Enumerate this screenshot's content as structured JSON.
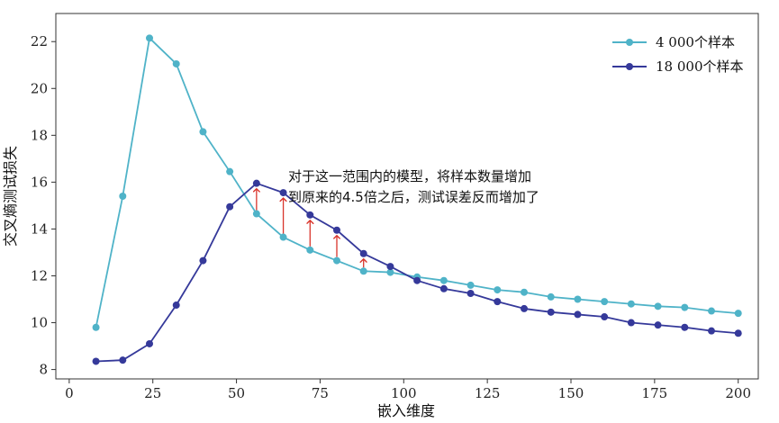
{
  "chart_data": {
    "type": "line",
    "xlabel": "嵌入维度",
    "ylabel": "交叉熵测试损失",
    "xlim": [
      -4,
      206
    ],
    "ylim": [
      7.6,
      23.2
    ],
    "xticks": [
      0,
      25,
      50,
      75,
      100,
      125,
      150,
      175,
      200
    ],
    "yticks": [
      8,
      10,
      12,
      14,
      16,
      18,
      20,
      22
    ],
    "x": [
      8,
      16,
      24,
      32,
      40,
      48,
      56,
      64,
      72,
      80,
      88,
      96,
      104,
      112,
      120,
      128,
      136,
      144,
      152,
      160,
      168,
      176,
      184,
      192,
      200
    ],
    "series": [
      {
        "name": "4 000个样本",
        "color": "#4fb3c8",
        "values": [
          9.8,
          15.4,
          22.15,
          21.05,
          18.15,
          16.45,
          14.65,
          13.65,
          13.1,
          12.65,
          12.2,
          12.15,
          11.95,
          11.8,
          11.6,
          11.4,
          11.3,
          11.1,
          11.0,
          10.9,
          10.8,
          10.7,
          10.65,
          10.5,
          10.4
        ]
      },
      {
        "name": "18 000个样本",
        "color": "#35399a",
        "values": [
          8.35,
          8.4,
          9.1,
          10.75,
          12.65,
          14.95,
          15.95,
          15.55,
          14.6,
          13.95,
          12.95,
          12.4,
          11.8,
          11.45,
          11.25,
          10.9,
          10.6,
          10.45,
          10.35,
          10.25,
          10.0,
          9.9,
          9.8,
          9.65,
          9.55
        ]
      }
    ],
    "arrows": {
      "color": "#d9342b",
      "x": [
        56,
        64,
        72,
        80,
        88
      ]
    },
    "annotation": [
      "对于这一范围内的模型，将样本数量增加",
      "到原来的4.5倍之后，测试误差反而增加了"
    ],
    "legend_position": "top-right",
    "grid": false
  }
}
